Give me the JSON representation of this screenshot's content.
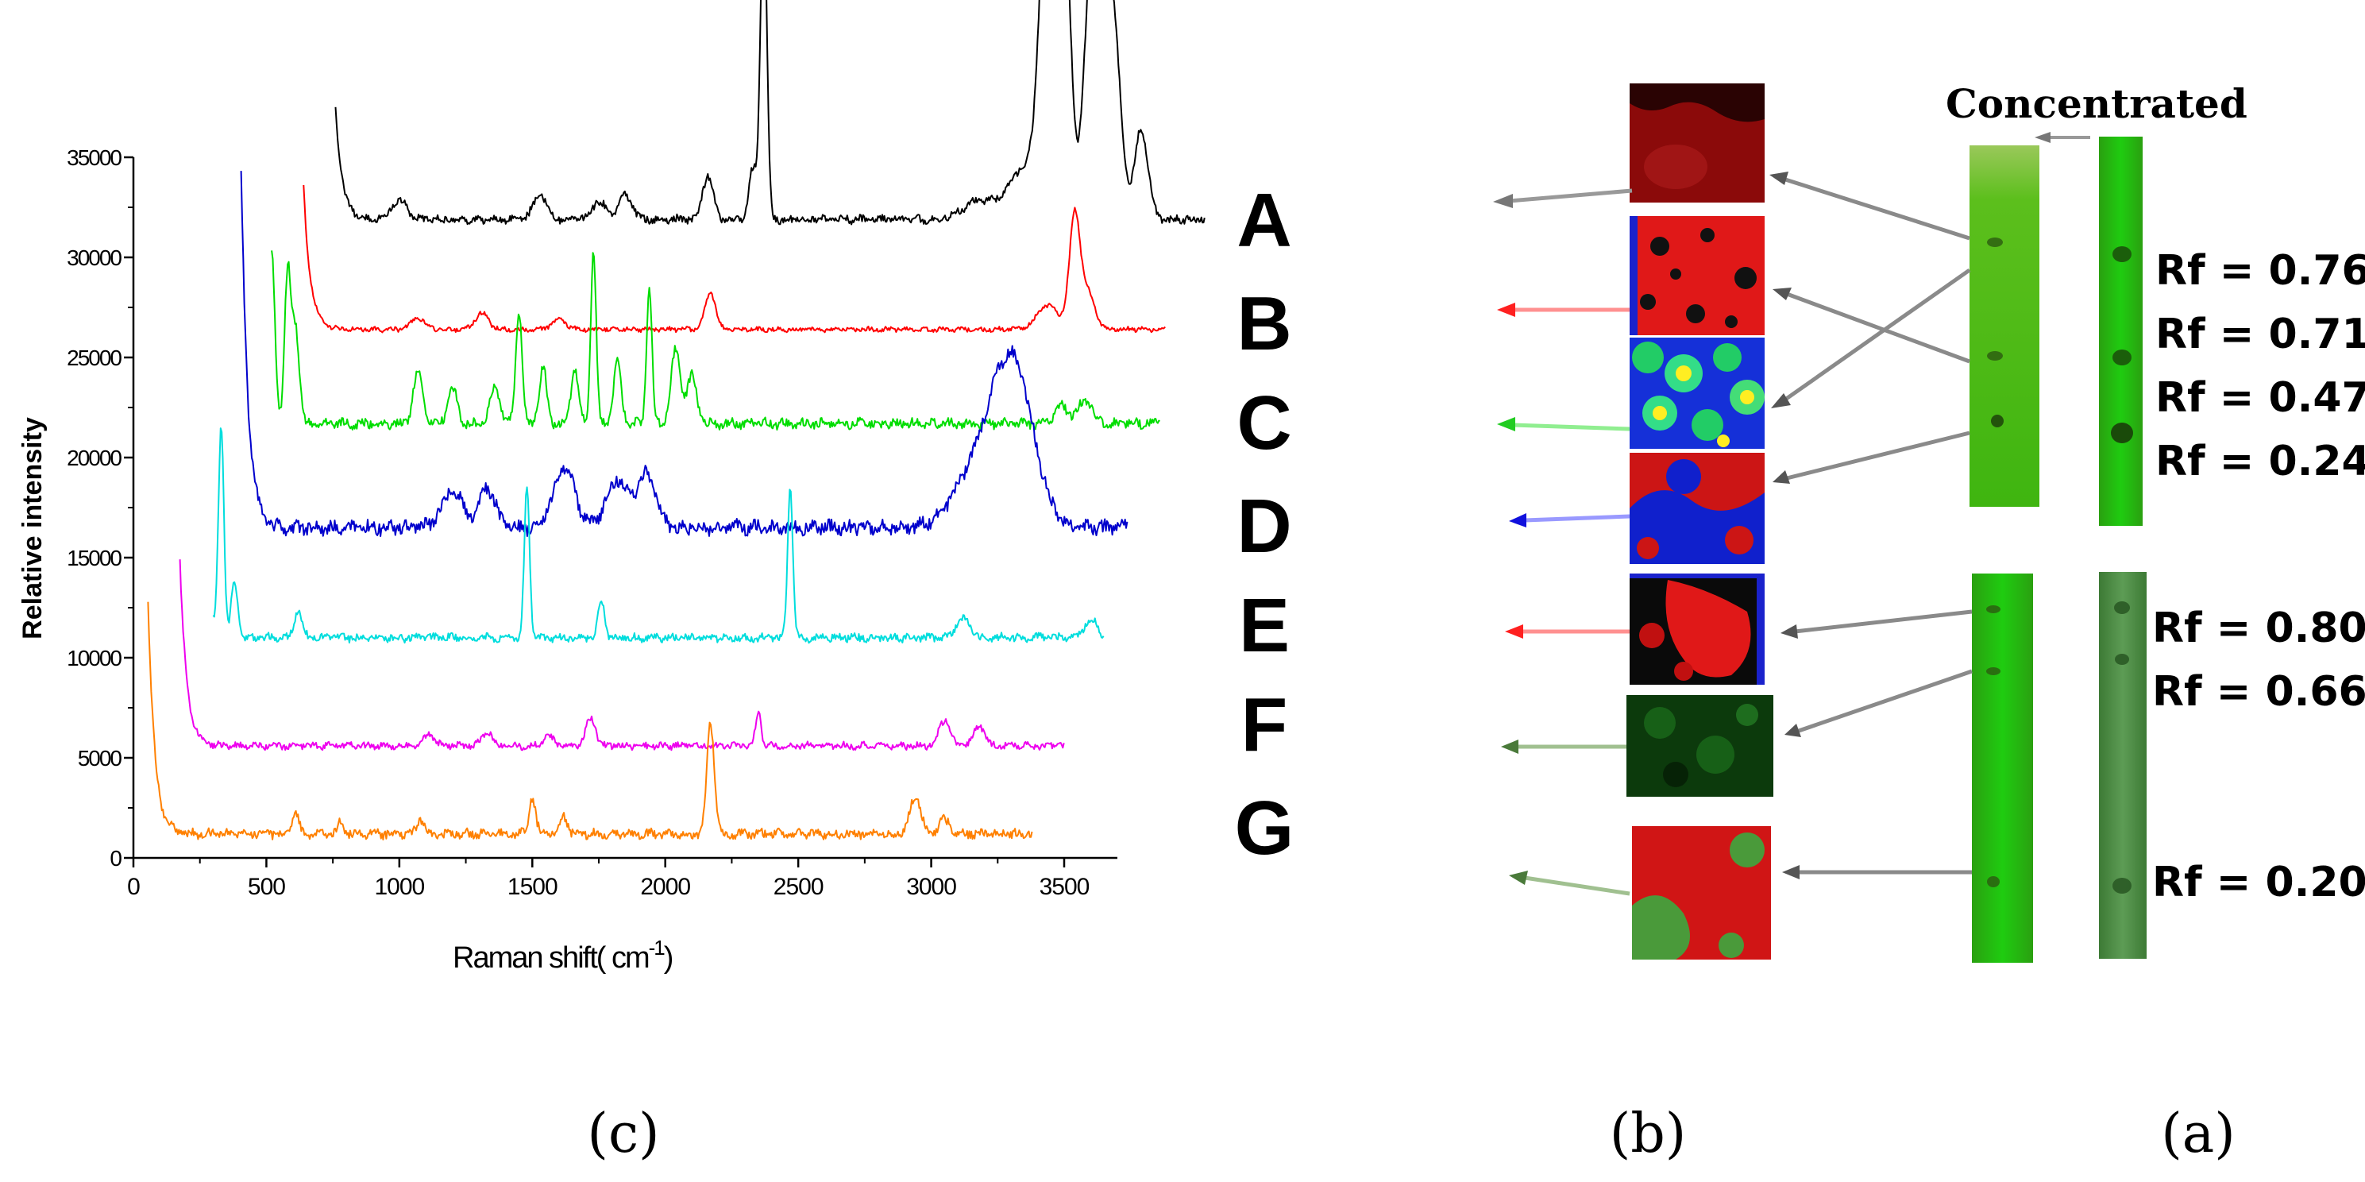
{
  "chart_data": {
    "type": "line",
    "title": "",
    "xlabel": "Raman shift( cm",
    "xlabel_sup": "-1",
    "xlabel_close": ")",
    "ylabel": "Relative intensity",
    "xlim": [
      0,
      3700
    ],
    "ylim": [
      0,
      35000
    ],
    "xticks": [
      "0",
      "500",
      "1000",
      "1500",
      "2000",
      "2500",
      "3000",
      "3500"
    ],
    "yticks": [
      "0",
      "5000",
      "10000",
      "15000",
      "20000",
      "25000",
      "30000",
      "35000"
    ],
    "series": [
      {
        "name": "A",
        "color": "#000000",
        "x_start": 760,
        "x_end": 4030,
        "baseline": 31900,
        "start_spike": 37500,
        "noise": 260,
        "peaks": [
          [
            1000,
            900,
            30
          ],
          [
            1530,
            1200,
            25
          ],
          [
            1750,
            900,
            25
          ],
          [
            1850,
            1200,
            25
          ],
          [
            2160,
            2200,
            20
          ],
          [
            2330,
            2500,
            15
          ],
          [
            2370,
            16000,
            12
          ],
          [
            3180,
            900,
            60
          ],
          [
            3350,
            2500,
            60
          ],
          [
            3440,
            17500,
            30
          ],
          [
            3500,
            14500,
            25
          ],
          [
            3610,
            15000,
            30
          ],
          [
            3680,
            10500,
            30
          ],
          [
            3790,
            4500,
            25
          ]
        ]
      },
      {
        "name": "B",
        "color": "#ff0000",
        "x_start": 640,
        "x_end": 3880,
        "baseline": 26400,
        "start_spike": 33600,
        "noise": 150,
        "peaks": [
          [
            1070,
            600,
            25
          ],
          [
            1310,
            800,
            25
          ],
          [
            1600,
            500,
            25
          ],
          [
            2170,
            1800,
            20
          ],
          [
            3440,
            1200,
            40
          ],
          [
            3540,
            5700,
            20
          ],
          [
            3590,
            1800,
            25
          ]
        ]
      },
      {
        "name": "C",
        "color": "#00dd00",
        "x_start": 520,
        "x_end": 3860,
        "baseline": 21700,
        "start_spike": 21700,
        "noise": 320,
        "peaks": [
          [
            520,
            8500,
            12
          ],
          [
            580,
            7400,
            12
          ],
          [
            610,
            4700,
            14
          ],
          [
            1070,
            2500,
            18
          ],
          [
            1200,
            1700,
            18
          ],
          [
            1360,
            1900,
            18
          ],
          [
            1450,
            5600,
            12
          ],
          [
            1540,
            2800,
            14
          ],
          [
            1660,
            2700,
            14
          ],
          [
            1730,
            8800,
            10
          ],
          [
            1820,
            3100,
            14
          ],
          [
            1940,
            6800,
            10
          ],
          [
            2040,
            3700,
            18
          ],
          [
            2100,
            2400,
            18
          ],
          [
            3490,
            900,
            25
          ],
          [
            3580,
            1200,
            25
          ]
        ]
      },
      {
        "name": "D",
        "color": "#0000cc",
        "x_start": 405,
        "x_end": 3740,
        "baseline": 16500,
        "start_spike": 34500,
        "noise": 450,
        "peaks": [
          [
            1200,
            1800,
            40
          ],
          [
            1330,
            2000,
            30
          ],
          [
            1620,
            3000,
            40
          ],
          [
            1820,
            2400,
            40
          ],
          [
            1930,
            2600,
            35
          ],
          [
            3160,
            2600,
            80
          ],
          [
            3260,
            5200,
            60
          ],
          [
            3330,
            4500,
            50
          ],
          [
            3400,
            1800,
            50
          ]
        ]
      },
      {
        "name": "E",
        "color": "#00dddd",
        "x_start": 300,
        "x_end": 3650,
        "baseline": 11000,
        "start_spike": 11800,
        "noise": 260,
        "peaks": [
          [
            330,
            10500,
            10
          ],
          [
            380,
            2700,
            12
          ],
          [
            620,
            1300,
            15
          ],
          [
            1480,
            7500,
            10
          ],
          [
            1760,
            1800,
            12
          ],
          [
            2470,
            7500,
            10
          ],
          [
            3120,
            1000,
            25
          ],
          [
            3600,
            900,
            25
          ]
        ]
      },
      {
        "name": "F",
        "color": "#ee00ee",
        "x_start": 175,
        "x_end": 3500,
        "baseline": 5600,
        "start_spike": 14800,
        "noise": 220,
        "peaks": [
          [
            1110,
            600,
            20
          ],
          [
            1330,
            700,
            20
          ],
          [
            1560,
            500,
            20
          ],
          [
            1720,
            1400,
            18
          ],
          [
            2350,
            1700,
            10
          ],
          [
            3050,
            1300,
            20
          ],
          [
            3180,
            1000,
            20
          ]
        ]
      },
      {
        "name": "G",
        "color": "#ff8000",
        "x_start": 55,
        "x_end": 3380,
        "baseline": 1200,
        "start_spike": 12800,
        "noise": 300,
        "peaks": [
          [
            610,
            1000,
            12
          ],
          [
            780,
            600,
            12
          ],
          [
            1080,
            700,
            15
          ],
          [
            1500,
            1800,
            12
          ],
          [
            1620,
            900,
            12
          ],
          [
            2170,
            5500,
            14
          ],
          [
            2940,
            1900,
            20
          ],
          [
            3050,
            700,
            20
          ]
        ]
      }
    ]
  },
  "row_labels": [
    "A",
    "B",
    "C",
    "D",
    "E",
    "F",
    "G"
  ],
  "tlc": {
    "concentrated_label": "Concentrated",
    "rf_top": [
      "Rf = 0.76",
      "Rf = 0.71",
      "Rf = 0.47",
      "Rf = 0.24"
    ],
    "rf_bottom": [
      "Rf = 0.80",
      "Rf = 0.66",
      "Rf = 0.20"
    ]
  },
  "captions": {
    "left": "(c)",
    "middle": "(b)",
    "right": "(a)"
  },
  "colors": {
    "red": "#cc1111",
    "dark_red": "#8b0000",
    "green": "#22aa22",
    "blue": "#1020cc",
    "plate_green": "#4cbb17"
  }
}
